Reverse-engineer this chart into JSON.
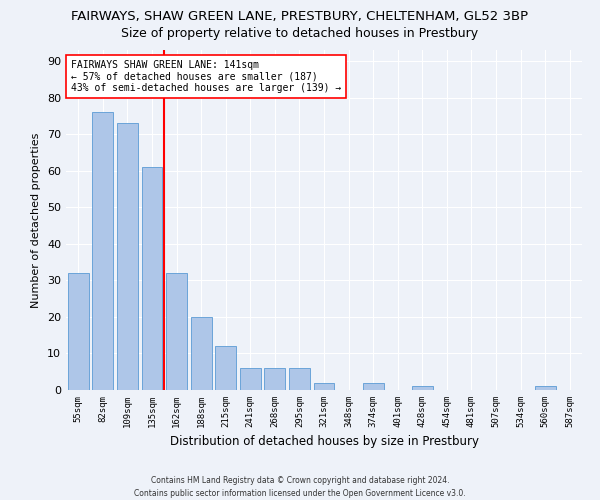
{
  "title": "FAIRWAYS, SHAW GREEN LANE, PRESTBURY, CHELTENHAM, GL52 3BP",
  "subtitle": "Size of property relative to detached houses in Prestbury",
  "xlabel": "Distribution of detached houses by size in Prestbury",
  "ylabel": "Number of detached properties",
  "categories": [
    "55sqm",
    "82sqm",
    "109sqm",
    "135sqm",
    "162sqm",
    "188sqm",
    "215sqm",
    "241sqm",
    "268sqm",
    "295sqm",
    "321sqm",
    "348sqm",
    "374sqm",
    "401sqm",
    "428sqm",
    "454sqm",
    "481sqm",
    "507sqm",
    "534sqm",
    "560sqm",
    "587sqm"
  ],
  "values": [
    32,
    76,
    73,
    61,
    32,
    20,
    12,
    6,
    6,
    6,
    2,
    0,
    2,
    0,
    1,
    0,
    0,
    0,
    0,
    1,
    0
  ],
  "bar_color": "#aec6e8",
  "bar_edge_color": "#5b9bd5",
  "property_line_x": 3.5,
  "annotation_text": "FAIRWAYS SHAW GREEN LANE: 141sqm\n← 57% of detached houses are smaller (187)\n43% of semi-detached houses are larger (139) →",
  "footer": "Contains HM Land Registry data © Crown copyright and database right 2024.\nContains public sector information licensed under the Open Government Licence v3.0.",
  "ylim": [
    0,
    93
  ],
  "background_color": "#eef2f9",
  "grid_color": "#ffffff",
  "title_fontsize": 9.5,
  "subtitle_fontsize": 9,
  "ylabel_fontsize": 8,
  "xlabel_fontsize": 8.5
}
